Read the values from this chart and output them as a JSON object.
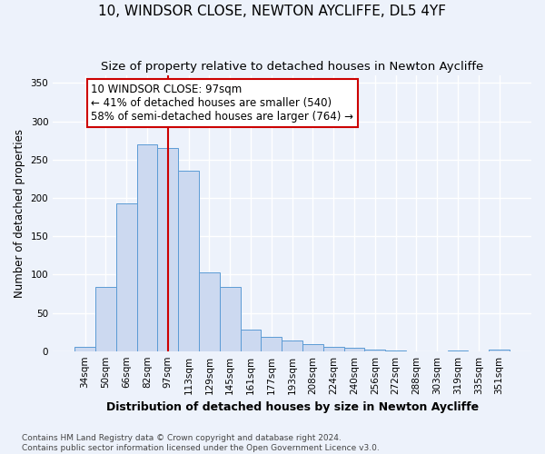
{
  "title": "10, WINDSOR CLOSE, NEWTON AYCLIFFE, DL5 4YF",
  "subtitle": "Size of property relative to detached houses in Newton Aycliffe",
  "xlabel": "Distribution of detached houses by size in Newton Aycliffe",
  "ylabel": "Number of detached properties",
  "categories": [
    "34sqm",
    "50sqm",
    "66sqm",
    "82sqm",
    "97sqm",
    "113sqm",
    "129sqm",
    "145sqm",
    "161sqm",
    "177sqm",
    "193sqm",
    "208sqm",
    "224sqm",
    "240sqm",
    "256sqm",
    "272sqm",
    "288sqm",
    "303sqm",
    "319sqm",
    "335sqm",
    "351sqm"
  ],
  "values": [
    6,
    84,
    193,
    270,
    265,
    236,
    103,
    84,
    28,
    19,
    14,
    9,
    5,
    4,
    2,
    1,
    0,
    0,
    1,
    0,
    2
  ],
  "bar_color": "#ccd9f0",
  "bar_edge_color": "#5b9bd5",
  "marker_index": 4,
  "vline_color": "#cc0000",
  "annotation_line1": "10 WINDSOR CLOSE: 97sqm",
  "annotation_line2": "← 41% of detached houses are smaller (540)",
  "annotation_line3": "58% of semi-detached houses are larger (764) →",
  "annotation_box_color": "#ffffff",
  "annotation_box_edge_color": "#cc0000",
  "ylim": [
    0,
    360
  ],
  "yticks": [
    0,
    50,
    100,
    150,
    200,
    250,
    300,
    350
  ],
  "footer_line1": "Contains HM Land Registry data © Crown copyright and database right 2024.",
  "footer_line2": "Contains public sector information licensed under the Open Government Licence v3.0.",
  "background_color": "#edf2fb",
  "grid_color": "#ffffff",
  "title_fontsize": 11,
  "subtitle_fontsize": 9.5,
  "xlabel_fontsize": 9,
  "ylabel_fontsize": 8.5,
  "tick_fontsize": 7.5,
  "annotation_fontsize": 8.5,
  "footer_fontsize": 6.5
}
